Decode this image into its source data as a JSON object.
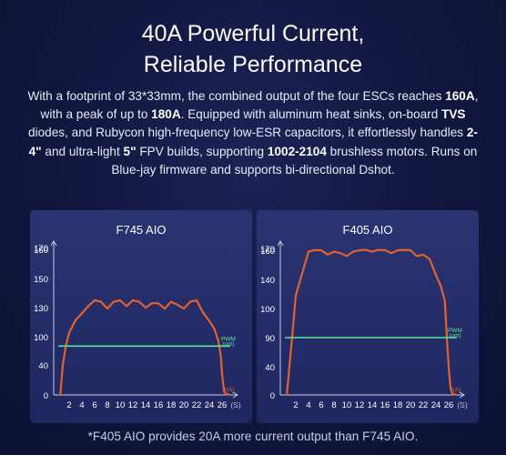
{
  "heading": {
    "line1": "40A Powerful Current,",
    "line2": "Reliable Performance"
  },
  "description": [
    {
      "text": "With a footprint of 33*33mm, the combined output of the four ESCs reaches ",
      "hl": false
    },
    {
      "text": "160A",
      "hl": true
    },
    {
      "text": ", with a peak of up to ",
      "hl": false
    },
    {
      "text": "180A",
      "hl": true
    },
    {
      "text": ". Equipped with aluminum heat sinks, on-board ",
      "hl": false
    },
    {
      "text": "TVS",
      "hl": true
    },
    {
      "text": " diodes, and Rubycon high-frequency low-ESR capacitors, it effortlessly handles ",
      "hl": false
    },
    {
      "text": "2-4\"",
      "hl": true
    },
    {
      "text": " and ultra-light ",
      "hl": false
    },
    {
      "text": "5\"",
      "hl": true
    },
    {
      "text": " FPV builds, supporting ",
      "hl": false
    },
    {
      "text": "1002-2104",
      "hl": true
    },
    {
      "text": " brushless motors. Runs on Blue-jay firmware and supports bi-directional Dshot.",
      "hl": false
    }
  ],
  "footer": "*F405 AIO provides 20A more current output than F745 AIO.",
  "colors": {
    "current_line": "#e0622e",
    "pwm_line": "#5fe39a",
    "axis": "#c8cce0",
    "panel_bg": "#262f6a"
  },
  "chart_data": [
    {
      "type": "line",
      "title": "F745 AIO",
      "xlabel": "(S)",
      "yticks": [
        0,
        40,
        100,
        130,
        150,
        160,
        170
      ],
      "xticks": [
        2,
        4,
        6,
        8,
        10,
        12,
        14,
        16,
        18,
        20,
        22,
        24,
        26
      ],
      "xlim": [
        0,
        29
      ],
      "series": [
        {
          "name": "I(A)",
          "x": [
            0.6,
            1.0,
            1.5,
            2.0,
            3.0,
            4.0,
            5.0,
            6.0,
            7.0,
            8.0,
            9.0,
            10.0,
            11.0,
            12.0,
            13.0,
            14.0,
            15.0,
            16.0,
            17.0,
            18.0,
            19.0,
            20.0,
            21.0,
            22.0,
            23.0,
            24.0,
            24.8,
            25.4,
            25.8,
            26.0,
            26.3,
            26.6,
            27.0
          ],
          "y": [
            0,
            40,
            82,
            104,
            117,
            124,
            131,
            135,
            134,
            129,
            134,
            135,
            131,
            135,
            134,
            130,
            133,
            133,
            129,
            134,
            132,
            129,
            134,
            135,
            125,
            116,
            108,
            92,
            60,
            28,
            5,
            1,
            1
          ]
        },
        {
          "name": "PWM (um)",
          "x": [
            0.4,
            27.2
          ],
          "y": [
            80,
            80
          ]
        }
      ]
    },
    {
      "type": "line",
      "title": "F405 AIO",
      "xlabel": "(S)",
      "yticks": [
        0,
        40,
        90,
        100,
        140,
        160,
        170
      ],
      "xticks": [
        2,
        4,
        6,
        8,
        10,
        12,
        14,
        16,
        18,
        20,
        22,
        24,
        26
      ],
      "xlim": [
        0,
        29
      ],
      "series": [
        {
          "name": "I(A)",
          "x": [
            0.6,
            1.0,
            1.5,
            2.0,
            3.0,
            4.0,
            5.0,
            6.0,
            7.0,
            8.0,
            9.0,
            10.0,
            11.0,
            12.0,
            13.0,
            14.0,
            15.0,
            16.0,
            17.0,
            18.0,
            19.0,
            20.0,
            21.0,
            22.0,
            23.0,
            24.0,
            24.8,
            25.4,
            25.8,
            26.0,
            26.3,
            26.6,
            27.0
          ],
          "y": [
            0,
            40,
            92,
            118,
            144,
            159,
            161,
            160,
            157,
            159,
            158,
            156,
            159,
            160,
            162,
            159,
            162,
            161,
            158,
            160,
            162,
            160,
            156,
            157,
            154,
            143,
            130,
            110,
            75,
            40,
            10,
            1,
            1
          ]
        },
        {
          "name": "PWM (um)",
          "x": [
            0.4,
            27.2
          ],
          "y": [
            90,
            90
          ]
        }
      ]
    }
  ],
  "legend": {
    "pwm_label_line1": "PWM",
    "pwm_label_line2": "(um)",
    "current_label": "I(A)"
  }
}
